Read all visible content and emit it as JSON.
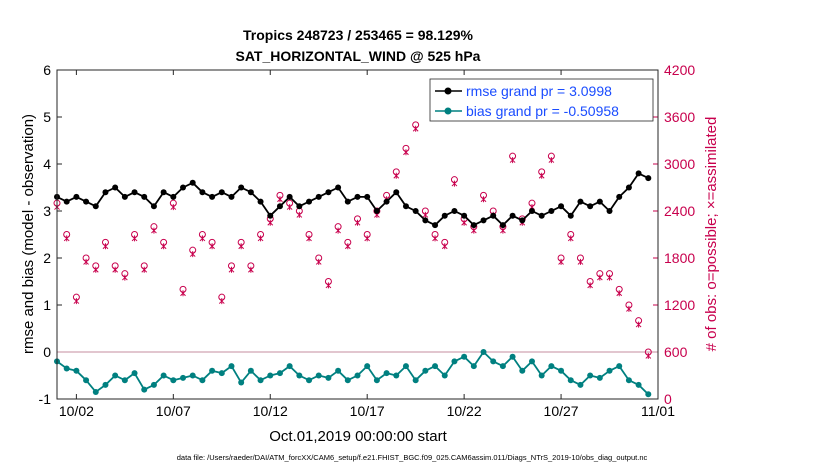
{
  "colors": {
    "rmse": "#000000",
    "bias": "#008080",
    "obs": "#c8004d",
    "legend_text": "#1a4cff",
    "zero_line": "#d9b3bf"
  },
  "chart_data": {
    "type": "line",
    "title": "Tropics 248723 / 253465 = 98.129%",
    "subtitle": "SAT_HORIZONTAL_WIND @ 525 hPa",
    "xlabel": "Oct.01,2019 00:00:00 start",
    "ylabel": "rmse and bias (model - observation)",
    "ylabel_right": "# of obs: o=possible; ×=assimilated",
    "xlim": [
      1,
      32
    ],
    "ylim": [
      -1,
      6
    ],
    "ylim_right": [
      0,
      4200
    ],
    "x_ticks": [
      2,
      7,
      12,
      17,
      22,
      27,
      32
    ],
    "x_tick_labels": [
      "10/02",
      "10/07",
      "10/12",
      "10/17",
      "10/22",
      "10/27",
      "11/01"
    ],
    "y_ticks": [
      -1,
      0,
      1,
      2,
      3,
      4,
      5,
      6
    ],
    "y_tick_labels": [
      "-1",
      "0",
      "1",
      "2",
      "3",
      "4",
      "5",
      "6"
    ],
    "y_ticks_right": [
      0,
      600,
      1200,
      1800,
      2400,
      3000,
      3600,
      4200
    ],
    "y_tick_labels_right": [
      "0",
      "600",
      "1200",
      "1800",
      "2400",
      "3000",
      "3600",
      "4200"
    ],
    "legend": [
      {
        "name": "rmse grand pr = 3.0998",
        "series": "rmse"
      },
      {
        "name": "bias grand pr = -0.50958",
        "series": "bias"
      }
    ],
    "series": [
      {
        "name": "rmse",
        "axis": "left",
        "color": "#000000",
        "marker": "dot",
        "anchors_x": [
          1.0,
          1.5,
          2.0,
          2.5,
          3.0,
          3.5,
          4.0,
          4.5,
          5.0,
          5.5,
          6.0,
          6.5,
          7.0,
          7.5,
          8.0,
          8.5,
          9.0,
          9.5,
          10.0,
          10.5,
          11.0,
          11.5,
          12.0,
          12.5,
          13.0,
          13.5,
          14.0,
          14.5,
          15.0,
          15.5,
          16.0,
          16.5,
          17.0,
          17.5,
          18.0,
          18.5,
          19.0,
          19.5,
          20.0,
          20.5,
          21.0,
          21.5,
          22.0,
          22.5,
          23.0,
          23.5,
          24.0,
          24.5,
          25.0,
          25.5,
          26.0,
          26.5,
          27.0,
          27.5,
          28.0,
          28.5,
          29.0,
          29.5,
          30.0,
          30.5,
          31.0,
          31.5
        ],
        "anchors_y": [
          3.3,
          3.2,
          3.3,
          3.2,
          3.1,
          3.4,
          3.5,
          3.3,
          3.4,
          3.3,
          3.1,
          3.4,
          3.3,
          3.5,
          3.6,
          3.4,
          3.3,
          3.4,
          3.3,
          3.5,
          3.4,
          3.2,
          2.9,
          3.1,
          3.3,
          3.1,
          3.2,
          3.3,
          3.4,
          3.5,
          3.2,
          3.3,
          3.3,
          3.0,
          3.2,
          3.4,
          3.1,
          3.0,
          2.8,
          2.7,
          2.9,
          3.0,
          2.9,
          2.7,
          2.8,
          2.9,
          2.7,
          2.9,
          2.8,
          3.0,
          2.9,
          3.0,
          3.1,
          2.9,
          3.2,
          3.1,
          3.2,
          3.0,
          3.3,
          3.5,
          3.8,
          3.7
        ]
      },
      {
        "name": "bias",
        "axis": "left",
        "color": "#008080",
        "marker": "dot",
        "anchors_x": [
          1.0,
          1.5,
          2.0,
          2.5,
          3.0,
          3.5,
          4.0,
          4.5,
          5.0,
          5.5,
          6.0,
          6.5,
          7.0,
          7.5,
          8.0,
          8.5,
          9.0,
          9.5,
          10.0,
          10.5,
          11.0,
          11.5,
          12.0,
          12.5,
          13.0,
          13.5,
          14.0,
          14.5,
          15.0,
          15.5,
          16.0,
          16.5,
          17.0,
          17.5,
          18.0,
          18.5,
          19.0,
          19.5,
          20.0,
          20.5,
          21.0,
          21.5,
          22.0,
          22.5,
          23.0,
          23.5,
          24.0,
          24.5,
          25.0,
          25.5,
          26.0,
          26.5,
          27.0,
          27.5,
          28.0,
          28.5,
          29.0,
          29.5,
          30.0,
          30.5,
          31.0,
          31.5
        ],
        "anchors_y": [
          -0.2,
          -0.35,
          -0.4,
          -0.6,
          -0.85,
          -0.7,
          -0.5,
          -0.6,
          -0.45,
          -0.8,
          -0.7,
          -0.5,
          -0.6,
          -0.55,
          -0.5,
          -0.6,
          -0.4,
          -0.45,
          -0.3,
          -0.65,
          -0.4,
          -0.6,
          -0.5,
          -0.45,
          -0.3,
          -0.5,
          -0.6,
          -0.5,
          -0.55,
          -0.4,
          -0.6,
          -0.5,
          -0.3,
          -0.6,
          -0.45,
          -0.5,
          -0.3,
          -0.6,
          -0.4,
          -0.3,
          -0.5,
          -0.2,
          -0.1,
          -0.3,
          0.0,
          -0.2,
          -0.3,
          -0.1,
          -0.4,
          -0.2,
          -0.5,
          -0.3,
          -0.4,
          -0.6,
          -0.7,
          -0.5,
          -0.55,
          -0.4,
          -0.3,
          -0.6,
          -0.7,
          -0.9
        ]
      },
      {
        "name": "possible",
        "axis": "right",
        "color": "#c8004d",
        "marker": "circle",
        "anchors_x": [
          1.0,
          1.5,
          2.0,
          2.5,
          3.0,
          3.5,
          4.0,
          4.5,
          5.0,
          5.5,
          6.0,
          6.5,
          7.0,
          7.5,
          8.0,
          8.5,
          9.0,
          9.5,
          10.0,
          10.5,
          11.0,
          11.5,
          12.0,
          12.5,
          13.0,
          13.5,
          14.0,
          14.5,
          15.0,
          15.5,
          16.0,
          16.5,
          17.0,
          17.5,
          18.0,
          18.5,
          19.0,
          19.5,
          20.0,
          20.5,
          21.0,
          21.5,
          22.0,
          22.5,
          23.0,
          23.5,
          24.0,
          24.5,
          25.0,
          25.5,
          26.0,
          26.5,
          27.0,
          27.5,
          28.0,
          28.5,
          29.0,
          29.5,
          30.0,
          30.5,
          31.0,
          31.5
        ],
        "anchors_y": [
          2500,
          2100,
          1300,
          1800,
          1700,
          2000,
          1700,
          1600,
          2100,
          1700,
          2200,
          2000,
          2500,
          1400,
          1900,
          2100,
          2000,
          1300,
          1700,
          2000,
          1700,
          2100,
          2300,
          2600,
          2500,
          2400,
          2100,
          1800,
          1500,
          2200,
          2000,
          2300,
          2100,
          2400,
          2600,
          2900,
          3200,
          3500,
          2400,
          2100,
          2000,
          2800,
          2300,
          2200,
          2600,
          2400,
          2200,
          3100,
          2300,
          2500,
          2900,
          3100,
          1800,
          2100,
          1800,
          1500,
          1600,
          1600,
          1400,
          1200,
          1000,
          600
        ]
      },
      {
        "name": "assimilated",
        "axis": "right",
        "color": "#c8004d",
        "marker": "x",
        "anchors_x": [
          1.0,
          1.5,
          2.0,
          2.5,
          3.0,
          3.5,
          4.0,
          4.5,
          5.0,
          5.5,
          6.0,
          6.5,
          7.0,
          7.5,
          8.0,
          8.5,
          9.0,
          9.5,
          10.0,
          10.5,
          11.0,
          11.5,
          12.0,
          12.5,
          13.0,
          13.5,
          14.0,
          14.5,
          15.0,
          15.5,
          16.0,
          16.5,
          17.0,
          17.5,
          18.0,
          18.5,
          19.0,
          19.5,
          20.0,
          20.5,
          21.0,
          21.5,
          22.0,
          22.5,
          23.0,
          23.5,
          24.0,
          24.5,
          25.0,
          25.5,
          26.0,
          26.5,
          27.0,
          27.5,
          28.0,
          28.5,
          29.0,
          29.5,
          30.0,
          30.5,
          31.0,
          31.5
        ],
        "anchors_y": [
          2450,
          2050,
          1250,
          1750,
          1650,
          1950,
          1650,
          1550,
          2050,
          1650,
          2150,
          1950,
          2450,
          1350,
          1850,
          2050,
          1950,
          1250,
          1650,
          1950,
          1650,
          2050,
          2250,
          2550,
          2450,
          2350,
          2050,
          1750,
          1450,
          2150,
          1950,
          2250,
          2050,
          2350,
          2550,
          2850,
          3150,
          3450,
          2350,
          2050,
          1950,
          2750,
          2250,
          2150,
          2550,
          2350,
          2150,
          3050,
          2250,
          2450,
          2850,
          3050,
          1750,
          2050,
          1750,
          1450,
          1550,
          1550,
          1350,
          1150,
          950,
          550
        ]
      }
    ]
  },
  "footer": "data file: /Users/raeder/DAI/ATM_forcXX/CAM6_setup/f.e21.FHIST_BGC.f09_025.CAM6assim.011/Diags_NTrS_2019-10/obs_diag_output.nc"
}
